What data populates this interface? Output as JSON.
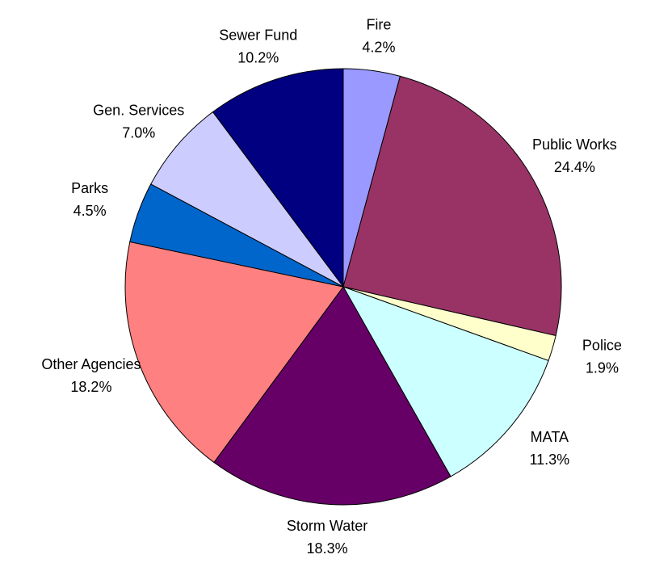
{
  "chart_data": {
    "type": "pie",
    "categories": [
      "Fire",
      "Public Works",
      "Police",
      "MATA",
      "Storm Water",
      "Other Agencies",
      "Parks",
      "Gen. Services",
      "Sewer Fund"
    ],
    "values": [
      4.2,
      24.4,
      1.9,
      11.3,
      18.3,
      18.2,
      4.5,
      7.0,
      10.2
    ],
    "value_labels": [
      "4.2%",
      "24.4%",
      "1.9%",
      "11.3%",
      "18.3%",
      "18.2%",
      "4.5%",
      "7.0%",
      "10.2%"
    ],
    "colors": [
      "#9999ff",
      "#993366",
      "#ffffcc",
      "#ccffff",
      "#660066",
      "#ff8080",
      "#0066cc",
      "#ccccff",
      "#000080"
    ]
  }
}
